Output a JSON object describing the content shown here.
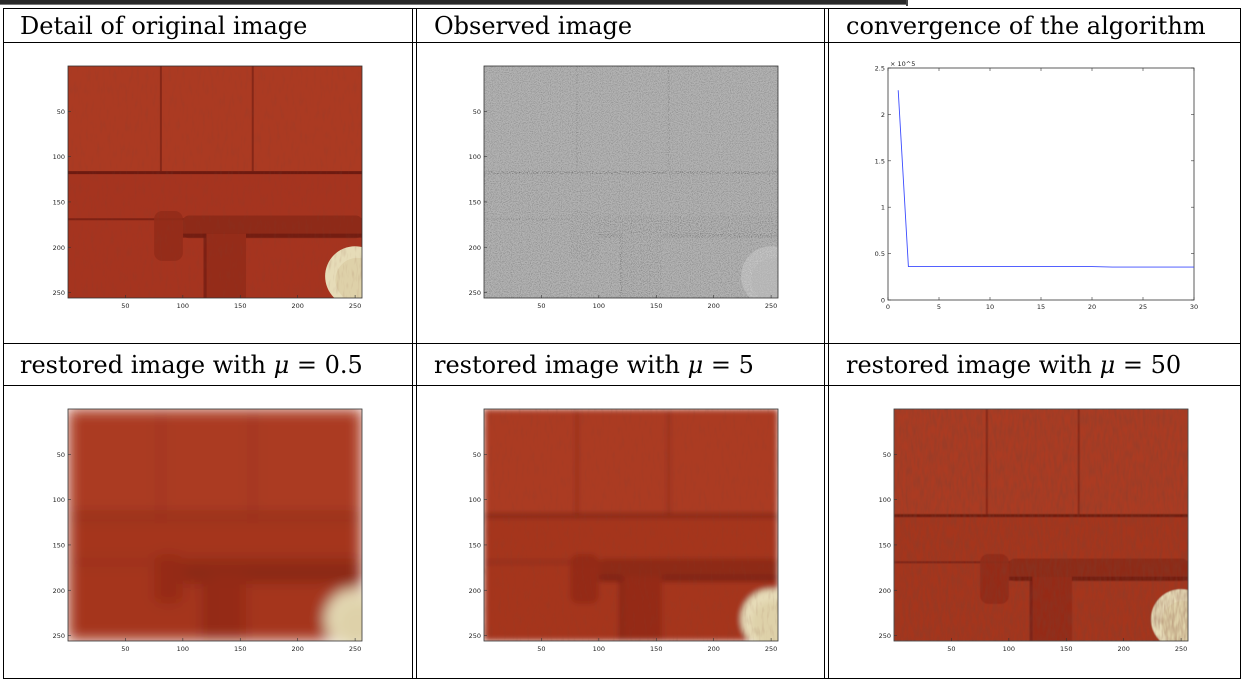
{
  "table": {
    "headers_row1": [
      "Detail of original image",
      "Observed image",
      "convergence of the algorithm"
    ],
    "headers_row2": [
      {
        "prefix": "restored image with ",
        "symbol": "μ",
        "rest": " = 0.5"
      },
      {
        "prefix": "restored image with ",
        "symbol": "μ",
        "rest": " = 5"
      },
      {
        "prefix": "restored image with ",
        "symbol": "μ",
        "rest": " = 50"
      }
    ]
  },
  "image_axes": {
    "x_ticks": [
      50,
      100,
      150,
      200,
      250
    ],
    "y_ticks": [
      50,
      100,
      150,
      200,
      250
    ],
    "range": [
      0,
      256
    ]
  },
  "panels": {
    "original": {
      "tone": "red",
      "noise": "low",
      "blur": 0
    },
    "observed": {
      "tone": "gray",
      "noise": "high",
      "blur": 0
    },
    "restored_05": {
      "tone": "red",
      "noise": "none",
      "blur": 7
    },
    "restored_5": {
      "tone": "red",
      "noise": "low",
      "blur": 3
    },
    "restored_50": {
      "tone": "red",
      "noise": "medium",
      "blur": 0.6
    }
  },
  "colors": {
    "wood": "#a5341f",
    "wood_dark": "#6e1a10",
    "knob": "#e6dcb8",
    "observed_gray": "#7a7a7a",
    "line": "#3b4bff"
  },
  "chart_data": {
    "type": "line",
    "title": "",
    "xlabel": "",
    "ylabel": "",
    "xlim": [
      0,
      30
    ],
    "ylim": [
      0,
      2.5
    ],
    "y_scale_exponent": "× 10^5",
    "x_ticks": [
      0,
      5,
      10,
      15,
      20,
      25,
      30
    ],
    "y_ticks": [
      0,
      0.5,
      1,
      1.5,
      2,
      2.5
    ],
    "x": [
      1,
      2,
      3,
      4,
      5,
      6,
      8,
      10,
      12,
      14,
      16,
      18,
      20,
      22,
      24,
      26,
      28,
      30
    ],
    "y": [
      2.26,
      0.36,
      0.36,
      0.36,
      0.36,
      0.36,
      0.36,
      0.36,
      0.36,
      0.36,
      0.36,
      0.36,
      0.36,
      0.355,
      0.355,
      0.355,
      0.355,
      0.355
    ]
  }
}
